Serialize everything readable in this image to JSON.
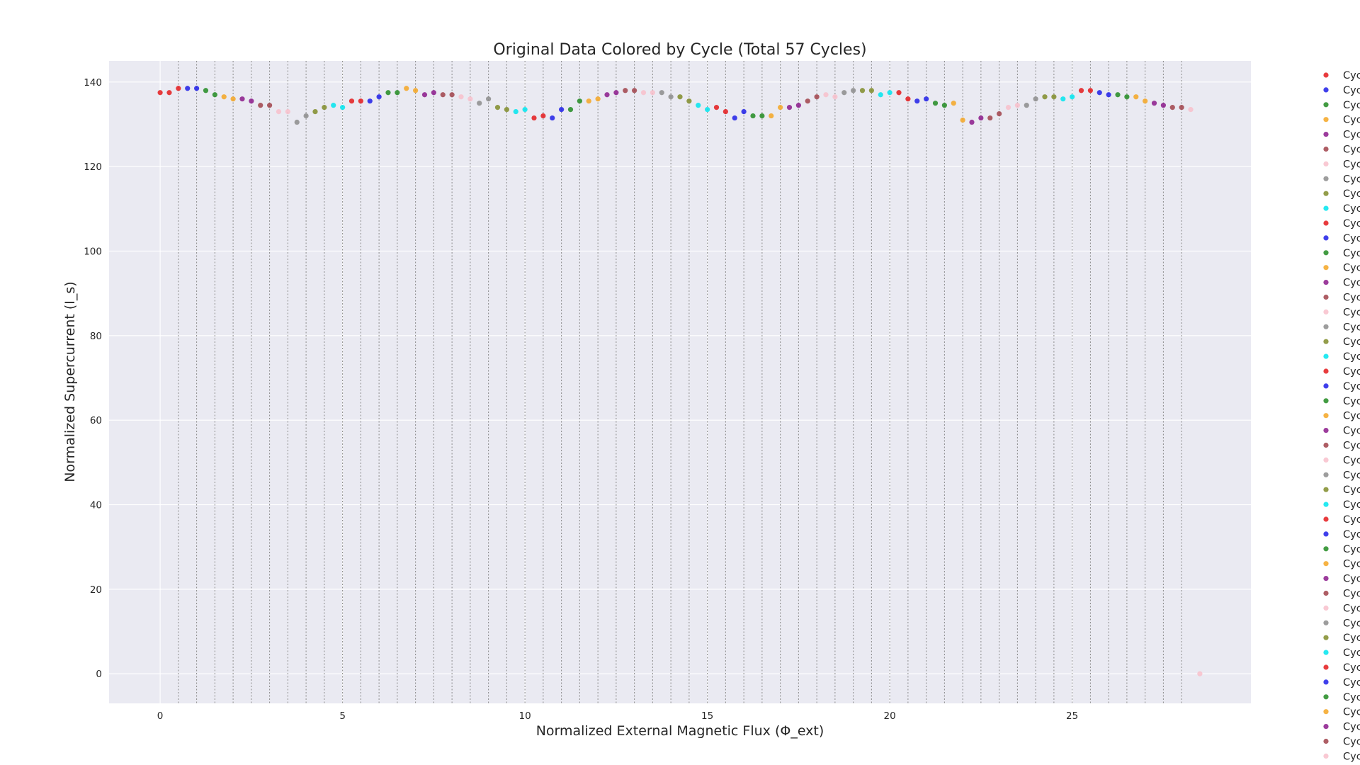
{
  "chart_data": {
    "type": "scatter",
    "title": "Original Data Colored by Cycle (Total 57 Cycles)",
    "xlabel": "Normalized External Magnetic Flux (Φ_ext)",
    "ylabel": "Normalized Supercurrent (I_s)",
    "xlim": [
      -1.4,
      29.9
    ],
    "ylim": [
      -7,
      145
    ],
    "xticks": [
      0,
      5,
      10,
      15,
      20,
      25
    ],
    "yticks": [
      0,
      20,
      40,
      60,
      80,
      100,
      120,
      140
    ],
    "grid": true,
    "cycle_boundaries": [
      0.5,
      1,
      1.5,
      2,
      2.5,
      3,
      3.5,
      4,
      4.5,
      5,
      5.5,
      6,
      6.5,
      7,
      7.5,
      8,
      8.5,
      9,
      9.5,
      10,
      10.5,
      11,
      11.5,
      12,
      12.5,
      13,
      13.5,
      14,
      14.5,
      15,
      15.5,
      16,
      16.5,
      17,
      17.5,
      18,
      18.5,
      19,
      19.5,
      20,
      20.5,
      21,
      21.5,
      22,
      22.5,
      23,
      23.5,
      24,
      24.5,
      25,
      25.5,
      26,
      26.5,
      27,
      27.5,
      28
    ],
    "palette": [
      "#e41a1c",
      "#1f1fe8",
      "#228b22",
      "#f5a623",
      "#8b1a8b",
      "#a0424a",
      "#f8c0cb",
      "#8c8c8c",
      "#808c2a",
      "#00e5ee"
    ],
    "legend_label": "Cyc",
    "legend_placement": "right, outside plot",
    "points": [
      {
        "x": 0.0,
        "y": 137.5,
        "cycle": 1
      },
      {
        "x": 0.25,
        "y": 137.5,
        "cycle": 1
      },
      {
        "x": 0.5,
        "y": 138.5,
        "cycle": 1
      },
      {
        "x": 0.75,
        "y": 138.5,
        "cycle": 2
      },
      {
        "x": 1.0,
        "y": 138.5,
        "cycle": 2
      },
      {
        "x": 1.25,
        "y": 138.0,
        "cycle": 3
      },
      {
        "x": 1.5,
        "y": 137.0,
        "cycle": 3
      },
      {
        "x": 1.75,
        "y": 136.5,
        "cycle": 4
      },
      {
        "x": 2.0,
        "y": 136.0,
        "cycle": 4
      },
      {
        "x": 2.25,
        "y": 136.0,
        "cycle": 5
      },
      {
        "x": 2.5,
        "y": 135.5,
        "cycle": 5
      },
      {
        "x": 2.75,
        "y": 134.5,
        "cycle": 6
      },
      {
        "x": 3.0,
        "y": 134.5,
        "cycle": 6
      },
      {
        "x": 3.25,
        "y": 133.0,
        "cycle": 7
      },
      {
        "x": 3.5,
        "y": 133.0,
        "cycle": 7
      },
      {
        "x": 3.75,
        "y": 130.5,
        "cycle": 8
      },
      {
        "x": 4.0,
        "y": 132.0,
        "cycle": 8
      },
      {
        "x": 4.25,
        "y": 133.0,
        "cycle": 9
      },
      {
        "x": 4.5,
        "y": 134.0,
        "cycle": 9
      },
      {
        "x": 4.75,
        "y": 134.5,
        "cycle": 10
      },
      {
        "x": 5.0,
        "y": 134.0,
        "cycle": 10
      },
      {
        "x": 5.25,
        "y": 135.5,
        "cycle": 11
      },
      {
        "x": 5.5,
        "y": 135.5,
        "cycle": 11
      },
      {
        "x": 5.75,
        "y": 135.5,
        "cycle": 12
      },
      {
        "x": 6.0,
        "y": 136.5,
        "cycle": 12
      },
      {
        "x": 6.25,
        "y": 137.5,
        "cycle": 13
      },
      {
        "x": 6.5,
        "y": 137.5,
        "cycle": 13
      },
      {
        "x": 6.75,
        "y": 138.5,
        "cycle": 14
      },
      {
        "x": 7.0,
        "y": 138.0,
        "cycle": 14
      },
      {
        "x": 7.25,
        "y": 137.0,
        "cycle": 15
      },
      {
        "x": 7.5,
        "y": 137.5,
        "cycle": 15
      },
      {
        "x": 7.75,
        "y": 137.0,
        "cycle": 16
      },
      {
        "x": 8.0,
        "y": 137.0,
        "cycle": 16
      },
      {
        "x": 8.25,
        "y": 136.5,
        "cycle": 17
      },
      {
        "x": 8.5,
        "y": 136.0,
        "cycle": 17
      },
      {
        "x": 8.75,
        "y": 135.0,
        "cycle": 18
      },
      {
        "x": 9.0,
        "y": 136.0,
        "cycle": 18
      },
      {
        "x": 9.25,
        "y": 134.0,
        "cycle": 19
      },
      {
        "x": 9.5,
        "y": 133.5,
        "cycle": 19
      },
      {
        "x": 9.75,
        "y": 133.0,
        "cycle": 20
      },
      {
        "x": 10.0,
        "y": 133.5,
        "cycle": 20
      },
      {
        "x": 10.25,
        "y": 131.5,
        "cycle": 21
      },
      {
        "x": 10.5,
        "y": 132.0,
        "cycle": 21
      },
      {
        "x": 10.75,
        "y": 131.5,
        "cycle": 22
      },
      {
        "x": 11.0,
        "y": 133.5,
        "cycle": 22
      },
      {
        "x": 11.25,
        "y": 133.5,
        "cycle": 23
      },
      {
        "x": 11.5,
        "y": 135.5,
        "cycle": 23
      },
      {
        "x": 11.75,
        "y": 135.5,
        "cycle": 24
      },
      {
        "x": 12.0,
        "y": 136.0,
        "cycle": 24
      },
      {
        "x": 12.25,
        "y": 137.0,
        "cycle": 25
      },
      {
        "x": 12.5,
        "y": 137.5,
        "cycle": 25
      },
      {
        "x": 12.75,
        "y": 138.0,
        "cycle": 26
      },
      {
        "x": 13.0,
        "y": 138.0,
        "cycle": 26
      },
      {
        "x": 13.25,
        "y": 137.5,
        "cycle": 27
      },
      {
        "x": 13.5,
        "y": 137.5,
        "cycle": 27
      },
      {
        "x": 13.75,
        "y": 137.5,
        "cycle": 28
      },
      {
        "x": 14.0,
        "y": 136.5,
        "cycle": 28
      },
      {
        "x": 14.25,
        "y": 136.5,
        "cycle": 29
      },
      {
        "x": 14.5,
        "y": 135.5,
        "cycle": 29
      },
      {
        "x": 14.75,
        "y": 134.5,
        "cycle": 30
      },
      {
        "x": 15.0,
        "y": 133.5,
        "cycle": 30
      },
      {
        "x": 15.25,
        "y": 134.0,
        "cycle": 31
      },
      {
        "x": 15.5,
        "y": 133.0,
        "cycle": 31
      },
      {
        "x": 15.75,
        "y": 131.5,
        "cycle": 32
      },
      {
        "x": 16.0,
        "y": 133.0,
        "cycle": 32
      },
      {
        "x": 16.25,
        "y": 132.0,
        "cycle": 33
      },
      {
        "x": 16.5,
        "y": 132.0,
        "cycle": 33
      },
      {
        "x": 16.75,
        "y": 132.0,
        "cycle": 34
      },
      {
        "x": 17.0,
        "y": 134.0,
        "cycle": 34
      },
      {
        "x": 17.25,
        "y": 134.0,
        "cycle": 35
      },
      {
        "x": 17.5,
        "y": 134.5,
        "cycle": 35
      },
      {
        "x": 17.75,
        "y": 135.5,
        "cycle": 36
      },
      {
        "x": 18.0,
        "y": 136.5,
        "cycle": 36
      },
      {
        "x": 18.25,
        "y": 137.0,
        "cycle": 37
      },
      {
        "x": 18.5,
        "y": 136.5,
        "cycle": 37
      },
      {
        "x": 18.75,
        "y": 137.5,
        "cycle": 38
      },
      {
        "x": 19.0,
        "y": 138.0,
        "cycle": 38
      },
      {
        "x": 19.25,
        "y": 138.0,
        "cycle": 39
      },
      {
        "x": 19.5,
        "y": 138.0,
        "cycle": 39
      },
      {
        "x": 19.75,
        "y": 137.0,
        "cycle": 40
      },
      {
        "x": 20.0,
        "y": 137.5,
        "cycle": 40
      },
      {
        "x": 20.25,
        "y": 137.5,
        "cycle": 41
      },
      {
        "x": 20.5,
        "y": 136.0,
        "cycle": 41
      },
      {
        "x": 20.75,
        "y": 135.5,
        "cycle": 42
      },
      {
        "x": 21.0,
        "y": 136.0,
        "cycle": 42
      },
      {
        "x": 21.25,
        "y": 135.0,
        "cycle": 43
      },
      {
        "x": 21.5,
        "y": 134.5,
        "cycle": 43
      },
      {
        "x": 21.75,
        "y": 135.0,
        "cycle": 44
      },
      {
        "x": 22.0,
        "y": 131.0,
        "cycle": 44
      },
      {
        "x": 22.25,
        "y": 130.5,
        "cycle": 45
      },
      {
        "x": 22.5,
        "y": 131.5,
        "cycle": 45
      },
      {
        "x": 22.75,
        "y": 131.5,
        "cycle": 46
      },
      {
        "x": 23.0,
        "y": 132.5,
        "cycle": 46
      },
      {
        "x": 23.25,
        "y": 134.0,
        "cycle": 47
      },
      {
        "x": 23.5,
        "y": 134.5,
        "cycle": 47
      },
      {
        "x": 23.75,
        "y": 134.5,
        "cycle": 48
      },
      {
        "x": 24.0,
        "y": 136.0,
        "cycle": 48
      },
      {
        "x": 24.25,
        "y": 136.5,
        "cycle": 49
      },
      {
        "x": 24.5,
        "y": 136.5,
        "cycle": 49
      },
      {
        "x": 24.75,
        "y": 136.0,
        "cycle": 50
      },
      {
        "x": 25.0,
        "y": 136.5,
        "cycle": 50
      },
      {
        "x": 25.25,
        "y": 138.0,
        "cycle": 51
      },
      {
        "x": 25.5,
        "y": 138.0,
        "cycle": 51
      },
      {
        "x": 25.75,
        "y": 137.5,
        "cycle": 52
      },
      {
        "x": 26.0,
        "y": 137.0,
        "cycle": 52
      },
      {
        "x": 26.25,
        "y": 137.0,
        "cycle": 53
      },
      {
        "x": 26.5,
        "y": 136.5,
        "cycle": 53
      },
      {
        "x": 26.75,
        "y": 136.5,
        "cycle": 54
      },
      {
        "x": 27.0,
        "y": 135.5,
        "cycle": 54
      },
      {
        "x": 27.25,
        "y": 135.0,
        "cycle": 55
      },
      {
        "x": 27.5,
        "y": 134.5,
        "cycle": 55
      },
      {
        "x": 27.75,
        "y": 134.0,
        "cycle": 56
      },
      {
        "x": 28.0,
        "y": 134.0,
        "cycle": 56
      },
      {
        "x": 28.25,
        "y": 133.5,
        "cycle": 57
      },
      {
        "x": 28.5,
        "y": 0.0,
        "cycle": 57
      }
    ]
  }
}
